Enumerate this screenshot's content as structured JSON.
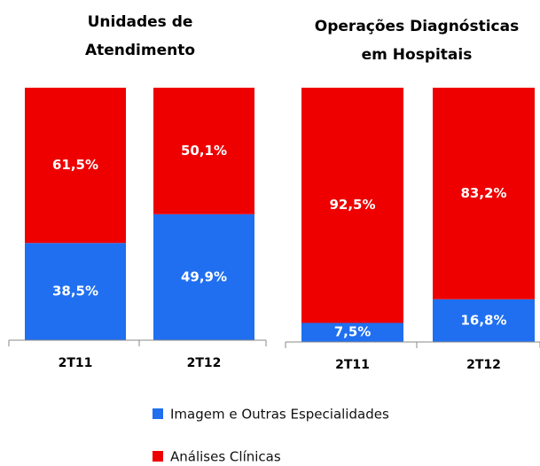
{
  "chart_data": [
    {
      "type": "stacked_bar",
      "title": "Unidades de Atendimento",
      "title_lines": [
        "Unidades de",
        "Atendimento"
      ],
      "categories": [
        "2T11",
        "2T12"
      ],
      "ylim": [
        0,
        100
      ],
      "series": [
        {
          "name": "Imagem e Outras Especialidades",
          "color": "#1f6ff0",
          "values": [
            38.5,
            49.9
          ],
          "value_labels": [
            "38,5%",
            "49,9%"
          ]
        },
        {
          "name": "Análises Clínicas",
          "color": "#ee0000",
          "values": [
            61.5,
            50.1
          ],
          "value_labels": [
            "61,5%",
            "50,1%"
          ]
        }
      ]
    },
    {
      "type": "stacked_bar",
      "title": "Operações Diagnósticas em Hospitais",
      "title_lines": [
        "Operações Diagnósticas",
        "em Hospitais"
      ],
      "categories": [
        "2T11",
        "2T12"
      ],
      "ylim": [
        0,
        100
      ],
      "series": [
        {
          "color": "#1f6ff0",
          "values": [
            7.5,
            16.8
          ],
          "value_labels": [
            "7,5%",
            "16,8%"
          ]
        },
        {
          "color": "#ee0000",
          "values": [
            92.5,
            83.2
          ],
          "value_labels": [
            "92,5%",
            "83,2%"
          ]
        }
      ]
    }
  ]
}
